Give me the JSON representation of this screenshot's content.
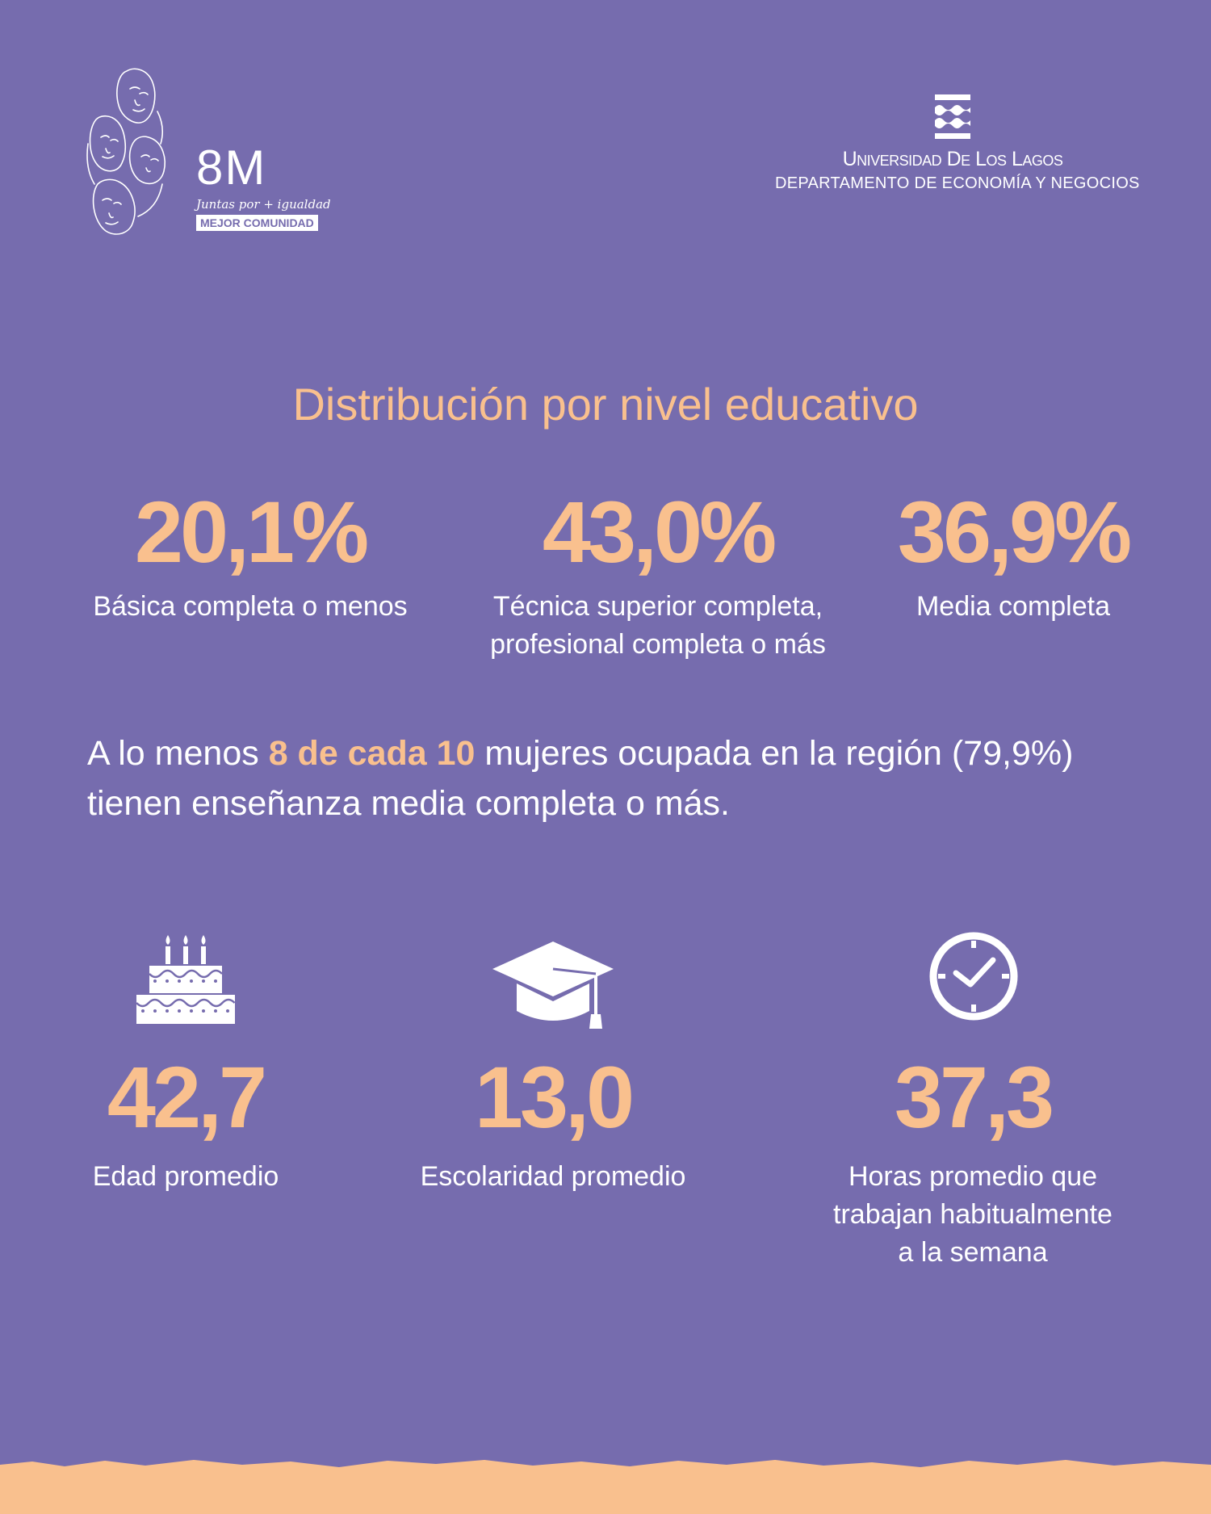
{
  "header": {
    "logo": {
      "mark": "8M",
      "tagline": "Juntas por + igualdad",
      "badge": "MEJOR COMUNIDAD",
      "icon": "faces-line-art-icon"
    },
    "university": {
      "name": "Universidad De Los Lagos",
      "department": "DEPARTAMENTO DE  ECONOMÍA Y NEGOCIOS",
      "icon": "wave-emblem-icon"
    }
  },
  "section_title": "Distribución por nivel educativo",
  "distribution": [
    {
      "value": "20,1%",
      "label": "Básica completa o menos"
    },
    {
      "value": "43,0%",
      "label_line1": "Técnica superior completa,",
      "label_line2": "profesional completa o más"
    },
    {
      "value": "36,9%",
      "label": "Media completa"
    }
  ],
  "summary": {
    "part1": "A lo menos ",
    "highlight": "8 de cada 10",
    "part2": " mujeres ocupada en la región (79,9%) tienen enseñanza media completa o más."
  },
  "stats": [
    {
      "icon": "birthday-cake-icon",
      "value": "42,7",
      "label": "Edad promedio"
    },
    {
      "icon": "graduation-cap-icon",
      "value": "13,0",
      "label": "Escolaridad promedio"
    },
    {
      "icon": "clock-icon",
      "value": "37,3",
      "label_line1": "Horas promedio que",
      "label_line2": "trabajan habitualmente",
      "label_line3": "a la semana"
    }
  ],
  "colors": {
    "background": "#766CAE",
    "accent": "#F9C08E",
    "text": "#FFFFFF"
  }
}
